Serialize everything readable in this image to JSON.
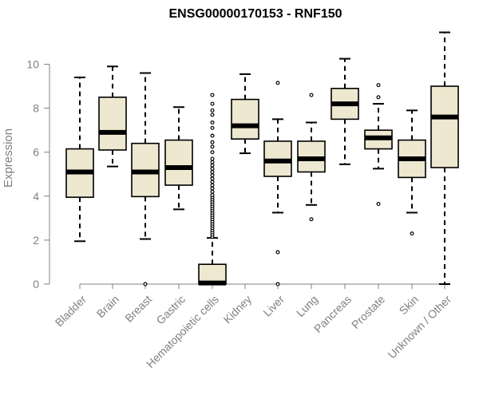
{
  "chart_data": {
    "type": "box",
    "title": "ENSG00000170153 - RNF150",
    "xlabel": "",
    "ylabel": "Expression",
    "ylim": [
      0,
      11.5
    ],
    "yticks": [
      0,
      2,
      4,
      6,
      8,
      10
    ],
    "colors": {
      "box_fill": "#EEE8D0",
      "stroke": "#000000",
      "axis_text": "#808080",
      "title": "#000000"
    },
    "categories": [
      "Bladder",
      "Brain",
      "Breast",
      "Gastric",
      "Hematopoietic cells",
      "Kidney",
      "Liver",
      "Lung",
      "Pancreas",
      "Prostate",
      "Skin",
      "Unknown / Other"
    ],
    "boxes": [
      {
        "category": "Bladder",
        "min": 1.95,
        "q1": 3.95,
        "median": 5.1,
        "q3": 6.15,
        "max": 9.4,
        "outliers": []
      },
      {
        "category": "Brain",
        "min": 5.35,
        "q1": 6.1,
        "median": 6.9,
        "q3": 8.5,
        "max": 9.9,
        "outliers": []
      },
      {
        "category": "Breast",
        "min": 2.05,
        "q1": 3.98,
        "median": 5.1,
        "q3": 6.4,
        "max": 9.6,
        "outliers": [
          0.0
        ]
      },
      {
        "category": "Gastric",
        "min": 3.4,
        "q1": 4.5,
        "median": 5.3,
        "q3": 6.55,
        "max": 8.05,
        "outliers": []
      },
      {
        "category": "Hematopoietic cells",
        "min": 0.0,
        "q1": 0.0,
        "median": 0.05,
        "q3": 0.9,
        "max": 2.1,
        "outliers": [
          2.15,
          2.25,
          2.35,
          2.45,
          2.55,
          2.65,
          2.75,
          2.85,
          2.95,
          3.05,
          3.15,
          3.25,
          3.35,
          3.45,
          3.55,
          3.65,
          3.75,
          3.85,
          3.95,
          4.05,
          4.2,
          4.35,
          4.5,
          4.65,
          4.8,
          4.95,
          5.1,
          5.25,
          5.4,
          5.55,
          5.7,
          6.0,
          6.25,
          6.45,
          6.75,
          7.1,
          7.35,
          7.7,
          7.9,
          8.2,
          8.6
        ]
      },
      {
        "category": "Kidney",
        "min": 5.95,
        "q1": 6.6,
        "median": 7.2,
        "q3": 8.4,
        "max": 9.55,
        "outliers": []
      },
      {
        "category": "Liver",
        "min": 3.25,
        "q1": 4.9,
        "median": 5.6,
        "q3": 6.5,
        "max": 7.5,
        "outliers": [
          9.15,
          1.45,
          0.0
        ]
      },
      {
        "category": "Lung",
        "min": 3.6,
        "q1": 5.1,
        "median": 5.7,
        "q3": 6.5,
        "max": 7.35,
        "outliers": [
          8.6,
          2.95
        ]
      },
      {
        "category": "Pancreas",
        "min": 5.45,
        "q1": 7.5,
        "median": 8.2,
        "q3": 8.9,
        "max": 10.25,
        "outliers": []
      },
      {
        "category": "Prostate",
        "min": 5.25,
        "q1": 6.15,
        "median": 6.65,
        "q3": 7.0,
        "max": 8.2,
        "outliers": [
          9.05,
          8.5,
          3.65
        ]
      },
      {
        "category": "Skin",
        "min": 3.25,
        "q1": 4.85,
        "median": 5.7,
        "q3": 6.55,
        "max": 7.9,
        "outliers": [
          2.3
        ]
      },
      {
        "category": "Unknown / Other",
        "min": 0.0,
        "q1": 5.3,
        "median": 7.6,
        "q3": 9.0,
        "max": 11.45,
        "outliers": []
      }
    ]
  }
}
